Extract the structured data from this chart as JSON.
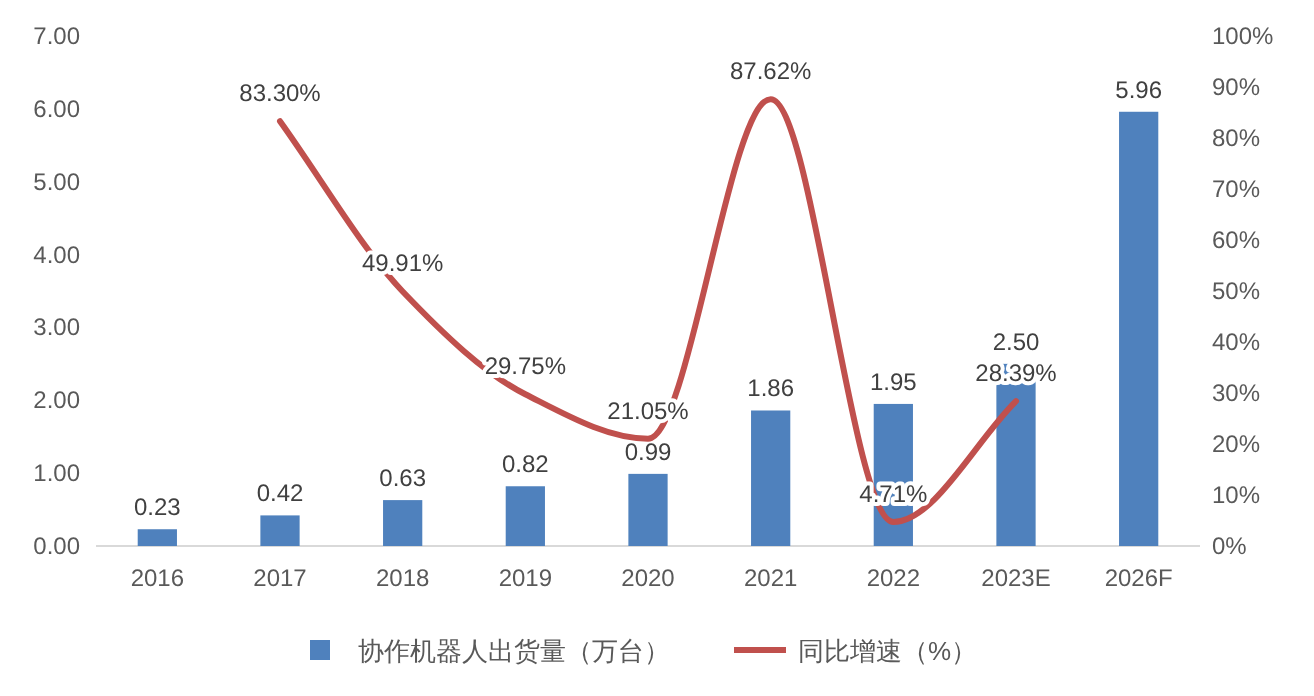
{
  "chart_data": {
    "type": "bar",
    "categories": [
      "2016",
      "2017",
      "2018",
      "2019",
      "2020",
      "2021",
      "2022",
      "2023E",
      "2026F"
    ],
    "series": [
      {
        "name": "协作机器人出货量（万台）",
        "color": "#4f81bd",
        "values": [
          0.23,
          0.42,
          0.63,
          0.82,
          0.99,
          1.86,
          1.95,
          2.5,
          5.96
        ],
        "value_labels": [
          "0.23",
          "0.42",
          "0.63",
          "0.82",
          "0.99",
          "1.86",
          "1.95",
          "2.50",
          "5.96"
        ]
      },
      {
        "name": "同比增速（%）",
        "type": "line",
        "axis": "y2",
        "color": "#c0504d",
        "values": [
          null,
          83.3,
          49.91,
          29.75,
          21.05,
          87.62,
          4.71,
          28.39,
          null
        ],
        "value_labels": [
          null,
          "83.30%",
          "49.91%",
          "29.75%",
          "21.05%",
          "87.62%",
          "4.71%",
          "28.39%",
          null
        ]
      }
    ],
    "ylim": [
      0,
      7
    ],
    "yticks": [
      {
        "value": 0,
        "label": "0.00"
      },
      {
        "value": 1,
        "label": "1.00"
      },
      {
        "value": 2,
        "label": "2.00"
      },
      {
        "value": 3,
        "label": "3.00"
      },
      {
        "value": 4,
        "label": "4.00"
      },
      {
        "value": 5,
        "label": "5.00"
      },
      {
        "value": 6,
        "label": "6.00"
      },
      {
        "value": 7,
        "label": "7.00"
      }
    ],
    "y2lim": [
      0,
      100
    ],
    "y2ticks": [
      {
        "value": 0,
        "label": "0%"
      },
      {
        "value": 10,
        "label": "10%"
      },
      {
        "value": 20,
        "label": "20%"
      },
      {
        "value": 30,
        "label": "30%"
      },
      {
        "value": 40,
        "label": "40%"
      },
      {
        "value": 50,
        "label": "50%"
      },
      {
        "value": 60,
        "label": "60%"
      },
      {
        "value": 70,
        "label": "70%"
      },
      {
        "value": 80,
        "label": "80%"
      },
      {
        "value": 90,
        "label": "90%"
      },
      {
        "value": 100,
        "label": "100%"
      }
    ],
    "legend": "bottom"
  }
}
